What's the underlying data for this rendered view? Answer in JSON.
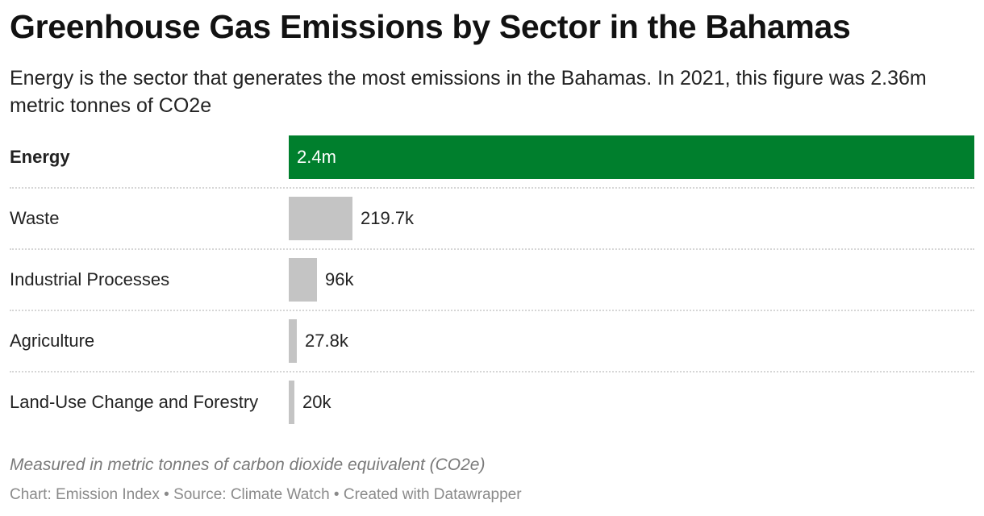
{
  "title": "Greenhouse Gas Emissions by Sector in the Bahamas",
  "subtitle": "Energy is the sector that generates the most emissions in the Bahamas. In 2021, this figure was 2.36m metric tonnes of CO2e",
  "notes": "Measured in metric tonnes of carbon dioxide equivalent (CO2e)",
  "footer": "Chart: Emission Index • Source: Climate Watch • Created with Datawrapper",
  "colors": {
    "highlight": "#007f2d",
    "default": "#c4c4c4"
  },
  "chart_data": {
    "type": "bar",
    "orientation": "horizontal",
    "categories": [
      "Energy",
      "Waste",
      "Industrial Processes",
      "Agriculture",
      "Land-Use Change and Forestry"
    ],
    "values": [
      2360000,
      219700,
      96000,
      27800,
      20000
    ],
    "value_labels": [
      "2.4m",
      "219.7k",
      "96k",
      "27.8k",
      "20k"
    ],
    "highlighted": [
      "Energy"
    ],
    "xlim": [
      0,
      2360000
    ],
    "grid": false,
    "legend": "none"
  }
}
